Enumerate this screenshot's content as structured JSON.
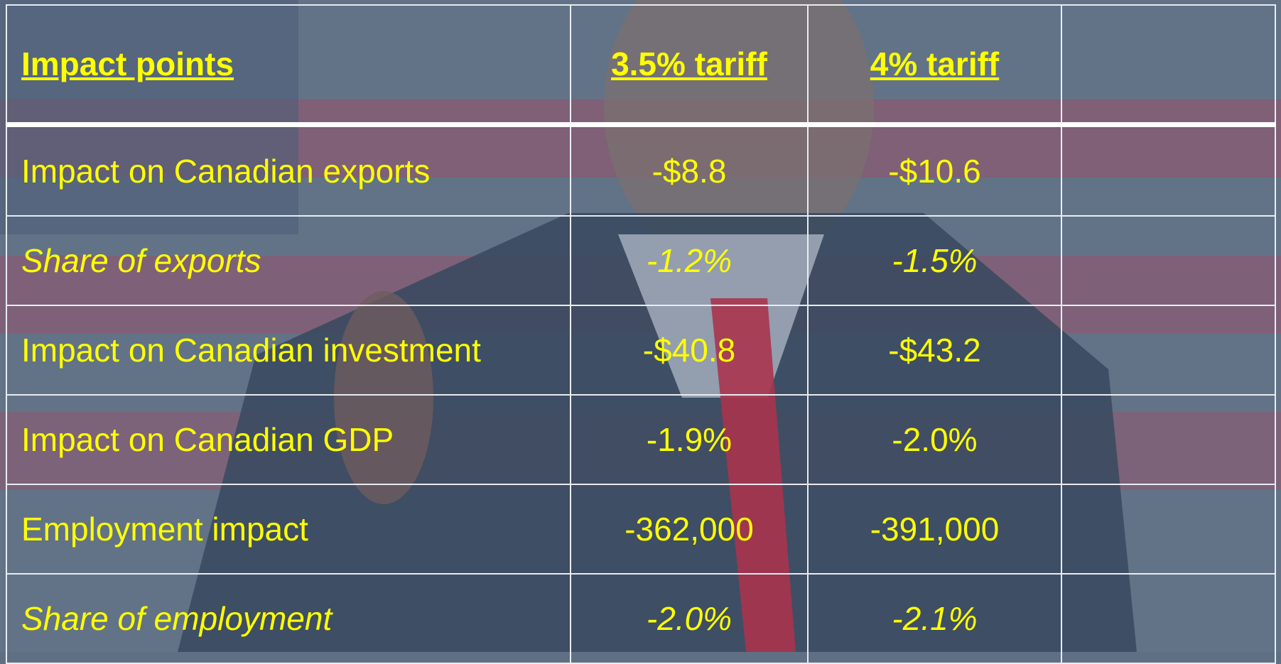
{
  "table": {
    "header": [
      "Impact points",
      "3.5% tariff",
      "4% tariff"
    ],
    "rows": [
      [
        "Impact on Canadian exports",
        "-$8.8",
        "-$10.6"
      ],
      [
        "Share of exports",
        "-1.2%",
        "-1.5%"
      ],
      [
        "Impact on Canadian investment",
        "-$40.8",
        "-$43.2"
      ],
      [
        "Impact on Canadian GDP",
        "-1.9%",
        "-2.0%"
      ],
      [
        "Employment impact",
        "-362,000",
        "-391,000"
      ],
      [
        "Share of employment",
        "-2.0%",
        "-2.1%"
      ]
    ]
  }
}
